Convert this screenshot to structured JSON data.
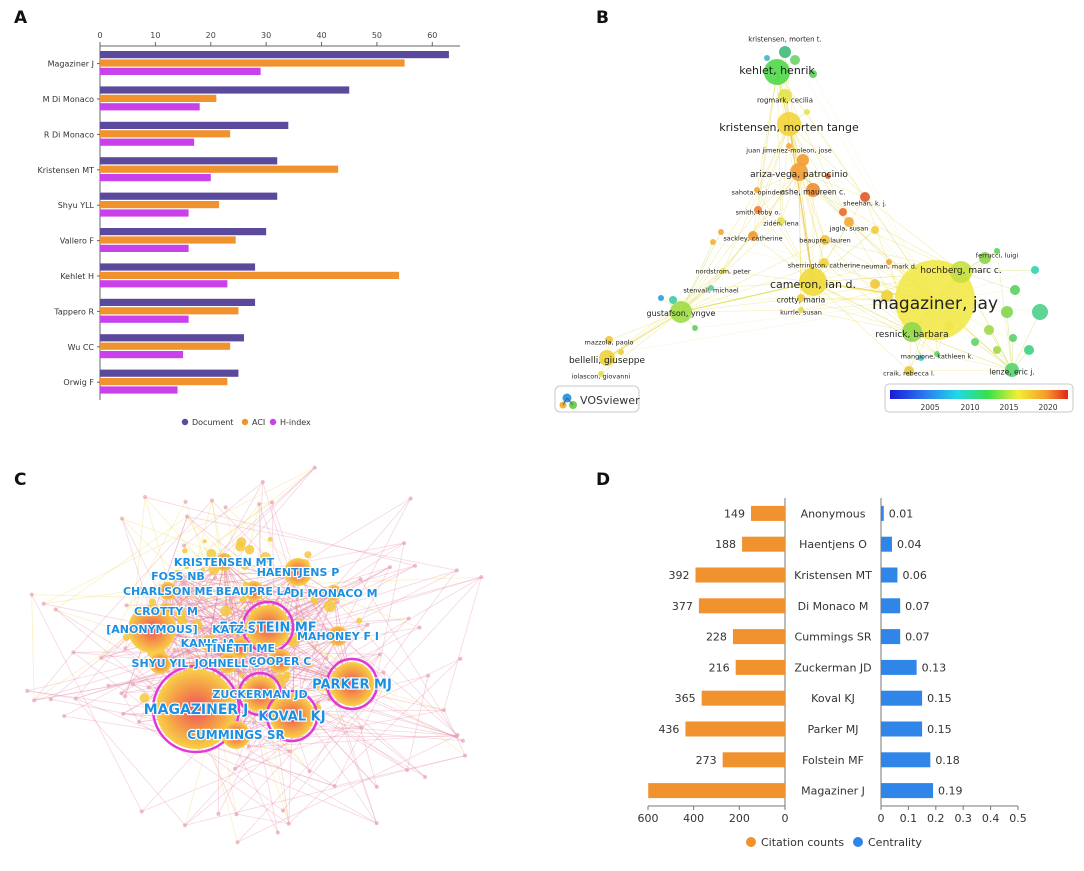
{
  "panels": {
    "a": "A",
    "b": "B",
    "c": "C",
    "d": "D"
  },
  "colors": {
    "document": "#5b4a9b",
    "aci": "#f0922e",
    "hindex": "#c841ea",
    "citation": "#f0922e",
    "centrality": "#2f86e8",
    "cite_text": "#1b8fe2"
  },
  "chart_data": [
    {
      "id": "A",
      "type": "bar",
      "orientation": "horizontal",
      "categories": [
        "Magaziner J",
        "M Di Monaco",
        "R Di Monaco",
        "Kristensen MT",
        "Shyu YLL",
        "Vallero F",
        "Kehlet H",
        "Tappero R",
        "Wu CC",
        "Orwig F"
      ],
      "series": [
        {
          "name": "Document",
          "values": [
            63,
            45,
            34,
            32,
            32,
            30,
            28,
            28,
            26,
            25
          ]
        },
        {
          "name": "ACI",
          "values": [
            55,
            21,
            23.5,
            43,
            21.5,
            24.5,
            54,
            25,
            23.5,
            23
          ]
        },
        {
          "name": "H-index",
          "values": [
            29,
            18,
            17,
            20,
            16,
            16,
            23,
            16,
            15,
            14
          ]
        }
      ],
      "xlim": [
        0,
        65
      ],
      "xticks": [
        0,
        10,
        20,
        30,
        40,
        50,
        60
      ],
      "legend": "bottom"
    },
    {
      "id": "B",
      "type": "network",
      "nodes": [
        {
          "label": "kristensen, morten t.",
          "color": "#3dbb7a"
        },
        {
          "label": "kehlet, henrik",
          "color": "#4fd84a"
        },
        {
          "label": "rogmark, cecilia",
          "color": "#e4e24a"
        },
        {
          "label": "kristensen, morten tange",
          "color": "#f3d43c"
        },
        {
          "label": "juan jimenez-moleon, jose",
          "color": "#f4a53a"
        },
        {
          "label": "ariza-vega, patrocinio",
          "color": "#f39d34"
        },
        {
          "label": "sahota, opinder",
          "color": "#f2a63a"
        },
        {
          "label": "ashe, maureen c.",
          "color": "#ef8d32"
        },
        {
          "label": "sheehan, k. j.",
          "color": "#e0592a"
        },
        {
          "label": "smith, toby o.",
          "color": "#f08032"
        },
        {
          "label": "zidén, lena",
          "color": "#e4e04a"
        },
        {
          "label": "jagla, susan",
          "color": "#f2a83a"
        },
        {
          "label": "sackley, catherine",
          "color": "#f0982e"
        },
        {
          "label": "beaupre, lauren",
          "color": "#eec43a"
        },
        {
          "label": "nordstrom, peter",
          "color": "#e9e24a"
        },
        {
          "label": "sherrington, catherine",
          "color": "#f0d43a"
        },
        {
          "label": "neuman, mark d.",
          "color": "#f0a438"
        },
        {
          "label": "ferrucci, luigi",
          "color": "#5cd45a"
        },
        {
          "label": "hochberg, marc c.",
          "color": "#c3e040"
        },
        {
          "label": "cameron, ian d.",
          "color": "#f0da3a"
        },
        {
          "label": "stenvall, michael",
          "color": "#57cfa4"
        },
        {
          "label": "crotty, maria",
          "color": "#efcb3a"
        },
        {
          "label": "kurrle, susan",
          "color": "#e2dc46"
        },
        {
          "label": "magaziner, jay",
          "color": "#f2e84a"
        },
        {
          "label": "gustafson, yngve",
          "color": "#9fdc44"
        },
        {
          "label": "resnick, barbara",
          "color": "#8ed848"
        },
        {
          "label": "mangione, kathleen k.",
          "color": "#66d466"
        },
        {
          "label": "mazzola, paolo",
          "color": "#f0c83a"
        },
        {
          "label": "bellelli, giuseppe",
          "color": "#eed23a"
        },
        {
          "label": "craik, rebecca l.",
          "color": "#e6c93e"
        },
        {
          "label": "lenze, eric j.",
          "color": "#55d46e"
        },
        {
          "label": "iolascon, giovanni",
          "color": "#e6df48"
        }
      ],
      "legend_logo": "VOSviewer",
      "colorbar_ticks": [
        "2005",
        "2010",
        "2015",
        "2020"
      ]
    },
    {
      "id": "C",
      "type": "network",
      "nodes": [
        {
          "label": "KRISTENSEN MT"
        },
        {
          "label": "HAENTJENS P"
        },
        {
          "label": "FOSS NB"
        },
        {
          "label": "CHARLSON ME"
        },
        {
          "label": "BEAUPRE LA"
        },
        {
          "label": "DI MONACO M"
        },
        {
          "label": "CROTTY M"
        },
        {
          "label": "FOLSTEIN MF"
        },
        {
          "label": "[ANONYMOUS]"
        },
        {
          "label": "KATZ S"
        },
        {
          "label": "MAHONEY F I"
        },
        {
          "label": "KANIS JA"
        },
        {
          "label": "TINETTI ME"
        },
        {
          "label": "SHYU YIL"
        },
        {
          "label": "JOHNELL O"
        },
        {
          "label": "COOPER C"
        },
        {
          "label": "PARKER MJ"
        },
        {
          "label": "ZUCKERMAN JD"
        },
        {
          "label": "MAGAZINER J"
        },
        {
          "label": "KOVAL KJ"
        },
        {
          "label": "CUMMINGS SR"
        }
      ]
    },
    {
      "id": "D",
      "type": "bar",
      "orientation": "horizontal",
      "categories": [
        "Anonymous",
        "Haentjens O",
        "Kristensen MT",
        "Di Monaco M",
        "Cummings SR",
        "Zuckerman JD",
        "Koval KJ",
        "Parker MJ",
        "Folstein MF",
        "Magaziner J"
      ],
      "series": [
        {
          "name": "Citation counts",
          "values": [
            149,
            188,
            392,
            377,
            228,
            216,
            365,
            436,
            273,
            599
          ]
        },
        {
          "name": "Centrality",
          "values": [
            0.01,
            0.04,
            0.06,
            0.07,
            0.07,
            0.13,
            0.15,
            0.15,
            0.18,
            0.19
          ]
        }
      ],
      "citation_labels": [
        "149",
        "188",
        "392",
        "377",
        "228",
        "216",
        "365",
        "436",
        "273",
        ""
      ],
      "centrality_labels": [
        "0.01",
        "0.04",
        "0.06",
        "0.07",
        "0.07",
        "0.13",
        "0.15",
        "0.15",
        "0.18",
        "0.19"
      ],
      "left_axis": {
        "range": [
          600,
          0
        ],
        "ticks": [
          "600",
          "400",
          "200",
          "0"
        ]
      },
      "right_axis": {
        "range": [
          0,
          0.5
        ],
        "ticks": [
          "0",
          "0.1",
          "0.2",
          "0.3",
          "0.4",
          "0.5"
        ]
      },
      "legend": "bottom"
    }
  ]
}
